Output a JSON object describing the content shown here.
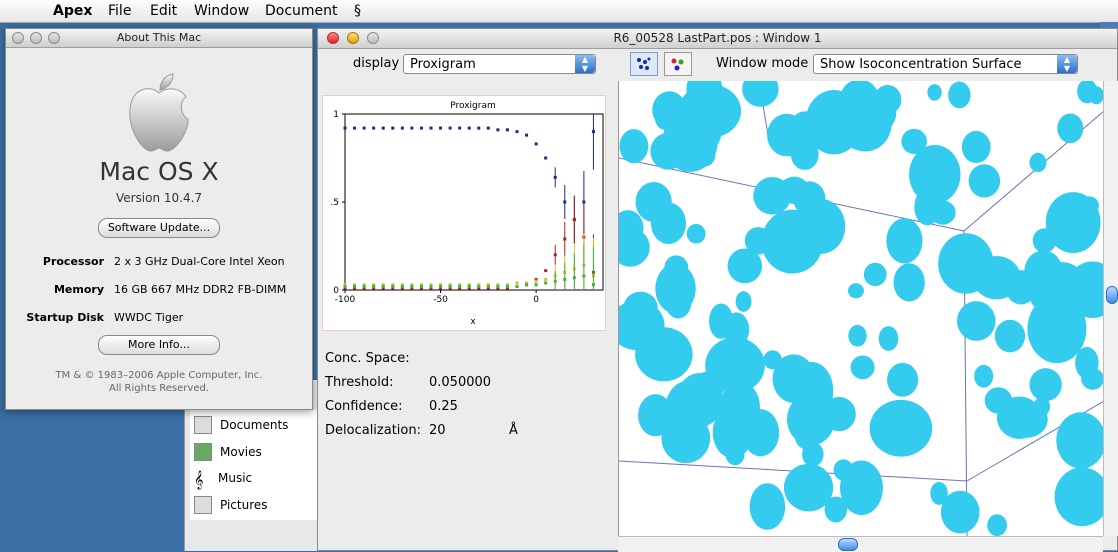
{
  "menubar": {
    "app": "Apex",
    "items": [
      "File",
      "Edit",
      "Window",
      "Document"
    ]
  },
  "finder": {
    "items": [
      "Documents",
      "Movies",
      "Music",
      "Pictures"
    ]
  },
  "about": {
    "title": "About This Mac",
    "os_name": "Mac OS X",
    "version": "Version 10.4.7",
    "software_update": "Software Update...",
    "processor_label": "Processor",
    "processor_value": "2 x 3 GHz Dual-Core Intel Xeon",
    "memory_label": "Memory",
    "memory_value": "16 GB 667 MHz DDR2 FB-DIMM",
    "startup_label": "Startup Disk",
    "startup_value": "WWDC Tiger",
    "more_info": "More Info...",
    "copyright1": "TM & © 1983–2006 Apple Computer, Inc.",
    "copyright2": "All Rights Reserved."
  },
  "main": {
    "title": "R6_00528 LastPart.pos : Window 1",
    "display_label": "display",
    "display_value": "Proxigram",
    "window_mode_label": "Window mode",
    "window_mode_value": "Show Isoconcentration Surface",
    "conc_space": "Conc. Space:",
    "threshold_label": "Threshold:",
    "threshold_value": "0.050000",
    "confidence_label": "Confidence:",
    "confidence_value": "0.25",
    "deloc_label": "Delocalization:",
    "deloc_value": "20",
    "deloc_unit": "Å"
  },
  "chart_data": {
    "type": "scatter",
    "title": "Proxigram",
    "xlabel": "x",
    "ylabel": "",
    "xlim": [
      -100,
      35
    ],
    "ylim": [
      0,
      1
    ],
    "xticks": [
      "-100",
      "-50",
      "0"
    ],
    "yticks": [
      "0",
      ".5",
      "1"
    ],
    "series": [
      {
        "color": "#1a2a8c",
        "x": [
          -100,
          -95,
          -90,
          -85,
          -80,
          -75,
          -70,
          -65,
          -60,
          -55,
          -50,
          -45,
          -40,
          -35,
          -30,
          -25,
          -20,
          -15,
          -10,
          -5,
          0,
          5,
          10,
          15,
          20,
          25,
          30
        ],
        "y": [
          0.92,
          0.92,
          0.92,
          0.92,
          0.92,
          0.92,
          0.92,
          0.92,
          0.92,
          0.92,
          0.92,
          0.92,
          0.92,
          0.92,
          0.92,
          0.92,
          0.91,
          0.91,
          0.9,
          0.88,
          0.83,
          0.75,
          0.64,
          0.5,
          0.4,
          0.5,
          0.9
        ]
      },
      {
        "color": "#b02020",
        "x": [
          -100,
          -95,
          -90,
          -85,
          -80,
          -75,
          -70,
          -65,
          -60,
          -55,
          -50,
          -45,
          -40,
          -35,
          -30,
          -25,
          -20,
          -15,
          -10,
          -5,
          0,
          5,
          10,
          15,
          20,
          25,
          30
        ],
        "y": [
          0.01,
          0.01,
          0.01,
          0.01,
          0.01,
          0.01,
          0.01,
          0.01,
          0.01,
          0.01,
          0.01,
          0.01,
          0.01,
          0.01,
          0.01,
          0.01,
          0.01,
          0.01,
          0.02,
          0.03,
          0.06,
          0.11,
          0.2,
          0.29,
          0.4,
          0.3,
          0.1
        ]
      },
      {
        "color": "#d8c020",
        "x": [
          -100,
          -95,
          -90,
          -85,
          -80,
          -75,
          -70,
          -65,
          -60,
          -55,
          -50,
          -45,
          -40,
          -35,
          -30,
          -25,
          -20,
          -15,
          -10,
          -5,
          0,
          5,
          10,
          15,
          20,
          25,
          30
        ],
        "y": [
          0.03,
          0.03,
          0.03,
          0.03,
          0.03,
          0.03,
          0.03,
          0.03,
          0.03,
          0.03,
          0.03,
          0.03,
          0.03,
          0.03,
          0.03,
          0.03,
          0.03,
          0.03,
          0.04,
          0.04,
          0.05,
          0.06,
          0.08,
          0.1,
          0.12,
          0.14,
          0.08
        ]
      },
      {
        "color": "#40b040",
        "x": [
          -100,
          -95,
          -90,
          -85,
          -80,
          -75,
          -70,
          -65,
          -60,
          -55,
          -50,
          -45,
          -40,
          -35,
          -30,
          -25,
          -20,
          -15,
          -10,
          -5,
          0,
          5,
          10,
          15,
          20,
          25,
          30
        ],
        "y": [
          0.02,
          0.02,
          0.02,
          0.02,
          0.02,
          0.02,
          0.02,
          0.02,
          0.02,
          0.02,
          0.02,
          0.02,
          0.02,
          0.02,
          0.02,
          0.02,
          0.02,
          0.02,
          0.02,
          0.03,
          0.03,
          0.04,
          0.05,
          0.06,
          0.07,
          0.08,
          0.03
        ]
      }
    ]
  },
  "colors": {
    "blob": "#33ccee",
    "accent": "#2a6fcf"
  }
}
